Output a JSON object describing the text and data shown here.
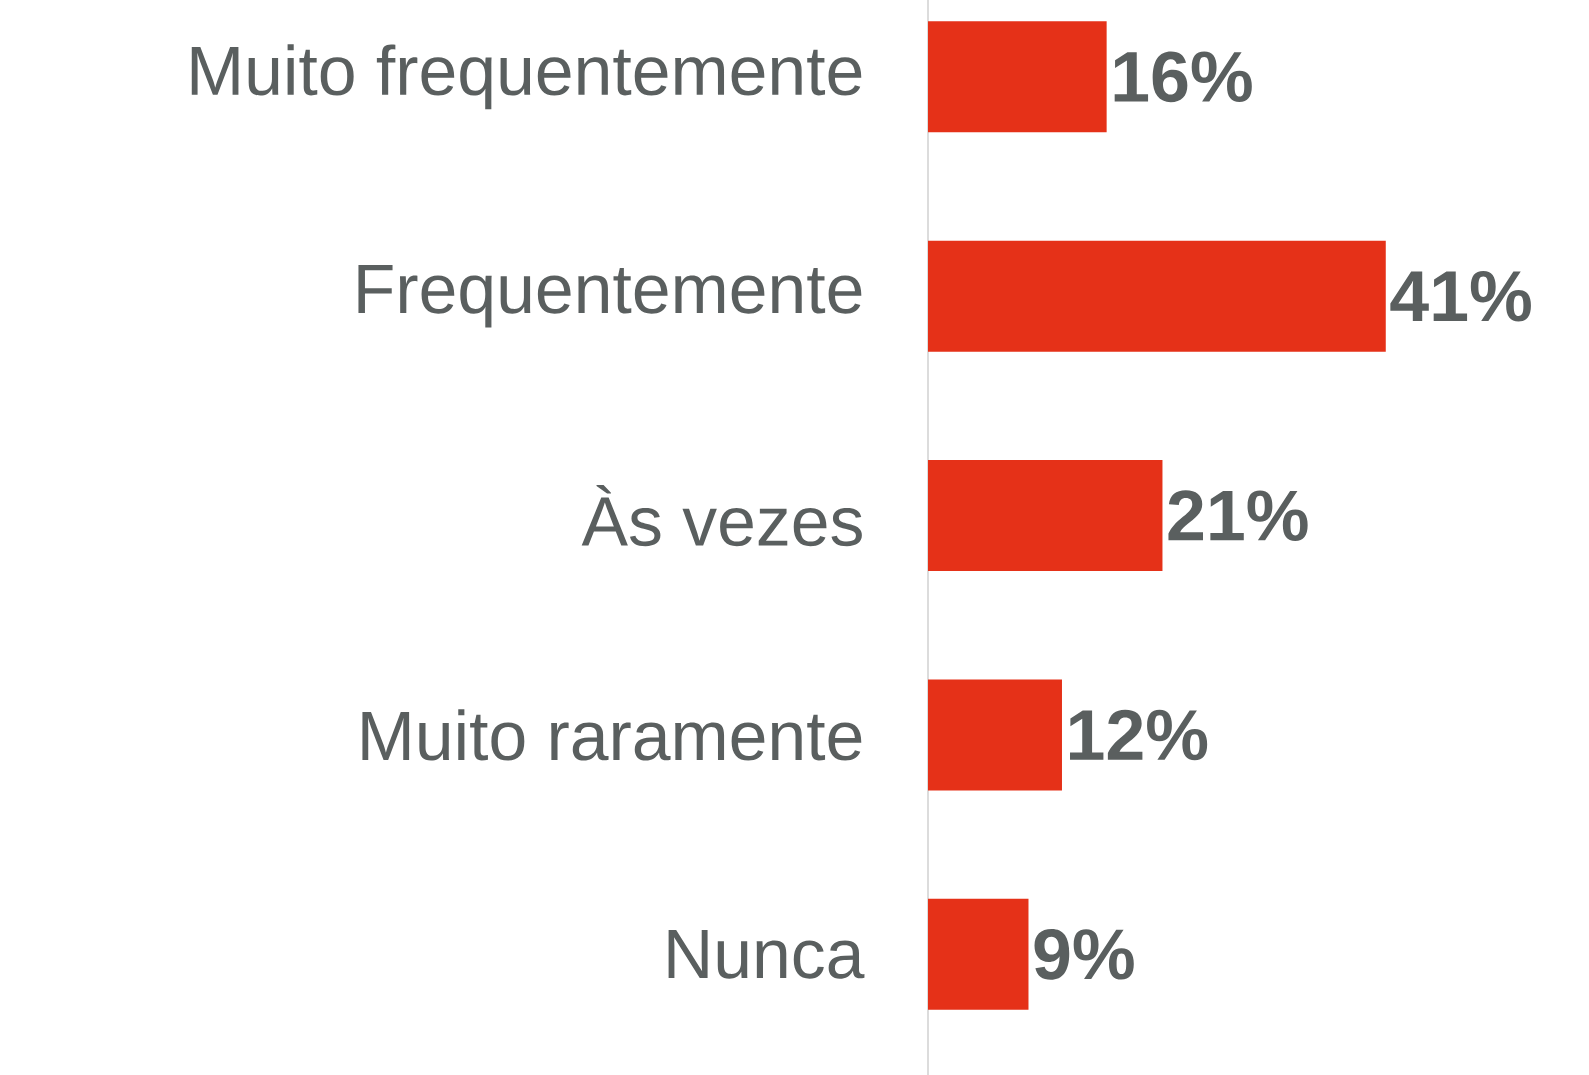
{
  "chart_data": {
    "type": "bar",
    "orientation": "horizontal",
    "categories": [
      "Muito frequentemente",
      "Frequentemente",
      "Às vezes",
      "Muito raramente",
      "Nunca"
    ],
    "values": [
      16,
      41,
      21,
      12,
      9
    ],
    "value_labels": [
      "16%",
      "41%",
      "21%",
      "12%",
      "9%"
    ],
    "color": "#e53118"
  }
}
